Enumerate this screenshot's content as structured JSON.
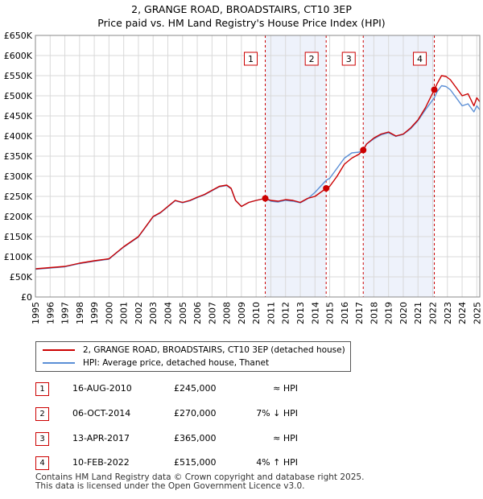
{
  "title_line1": "2, GRANGE ROAD, BROADSTAIRS, CT10 3EP",
  "title_line2": "Price paid vs. HM Land Registry's House Price Index (HPI)",
  "colors": {
    "property": "#cc0000",
    "hpi": "#5b8fd6",
    "shade": "#eef2fb",
    "vline": "#cc0000"
  },
  "chart_data": {
    "type": "line",
    "title": "Price paid vs. HM Land Registry's House Price Index (HPI)",
    "xlim": [
      1995,
      2025.2
    ],
    "ylim": [
      0,
      650000
    ],
    "y_ticks": [
      {
        "value": 0,
        "label": "£0"
      },
      {
        "value": 50000,
        "label": "£50K"
      },
      {
        "value": 100000,
        "label": "£100K"
      },
      {
        "value": 150000,
        "label": "£150K"
      },
      {
        "value": 200000,
        "label": "£200K"
      },
      {
        "value": 250000,
        "label": "£250K"
      },
      {
        "value": 300000,
        "label": "£300K"
      },
      {
        "value": 350000,
        "label": "£350K"
      },
      {
        "value": 400000,
        "label": "£400K"
      },
      {
        "value": 450000,
        "label": "£450K"
      },
      {
        "value": 500000,
        "label": "£500K"
      },
      {
        "value": 550000,
        "label": "£550K"
      },
      {
        "value": 600000,
        "label": "£600K"
      },
      {
        "value": 650000,
        "label": "£650K"
      }
    ],
    "x_ticks": [
      "1995",
      "1996",
      "1997",
      "1998",
      "1999",
      "2000",
      "2001",
      "2002",
      "2003",
      "2004",
      "2005",
      "2006",
      "2007",
      "2008",
      "2009",
      "2010",
      "2011",
      "2012",
      "2013",
      "2014",
      "2015",
      "2016",
      "2017",
      "2018",
      "2019",
      "2020",
      "2021",
      "2022",
      "2023",
      "2024",
      "2025"
    ],
    "grid": true,
    "shaded_ranges": [
      [
        2010.62,
        2014.76
      ],
      [
        2017.28,
        2022.11
      ]
    ],
    "series": [
      {
        "name": "2, GRANGE ROAD, BROADSTAIRS, CT10 3EP (detached house)",
        "color": "#cc0000",
        "x": [
          1995,
          1996,
          1997,
          1998,
          1999,
          2000,
          2000.5,
          2001,
          2002,
          2002.5,
          2003,
          2003.5,
          2004,
          2004.5,
          2005,
          2005.5,
          2006,
          2006.5,
          2007,
          2007.5,
          2008,
          2008.3,
          2008.6,
          2009,
          2009.5,
          2010,
          2010.62,
          2011,
          2011.5,
          2012,
          2012.5,
          2013,
          2013.5,
          2014,
          2014.76,
          2015,
          2015.5,
          2016,
          2016.5,
          2017,
          2017.28,
          2017.5,
          2018,
          2018.5,
          2019,
          2019.5,
          2020,
          2020.5,
          2021,
          2021.5,
          2022.11,
          2022.3,
          2022.6,
          2022.9,
          2023.2,
          2023.6,
          2024,
          2024.4,
          2024.8,
          2025,
          2025.2
        ],
        "y": [
          70000,
          73000,
          76000,
          84000,
          90000,
          95000,
          110000,
          125000,
          150000,
          175000,
          200000,
          210000,
          225000,
          240000,
          235000,
          240000,
          248000,
          255000,
          265000,
          275000,
          278000,
          270000,
          240000,
          225000,
          235000,
          240000,
          245000,
          240000,
          238000,
          242000,
          240000,
          235000,
          245000,
          250000,
          270000,
          275000,
          300000,
          330000,
          345000,
          355000,
          365000,
          380000,
          395000,
          405000,
          410000,
          400000,
          405000,
          420000,
          440000,
          470000,
          515000,
          530000,
          550000,
          548000,
          540000,
          520000,
          500000,
          505000,
          475000,
          495000,
          485000
        ]
      },
      {
        "name": "HPI: Average price, detached house, Thanet",
        "color": "#5b8fd6",
        "x": [
          1995,
          1996,
          1997,
          1998,
          1999,
          2000,
          2000.5,
          2001,
          2002,
          2002.5,
          2003,
          2003.5,
          2004,
          2004.5,
          2005,
          2005.5,
          2006,
          2006.5,
          2007,
          2007.5,
          2008,
          2008.3,
          2008.6,
          2009,
          2009.5,
          2010,
          2010.62,
          2011,
          2011.5,
          2012,
          2012.5,
          2013,
          2013.5,
          2014,
          2014.76,
          2015,
          2015.5,
          2016,
          2016.5,
          2017,
          2017.28,
          2017.5,
          2018,
          2018.5,
          2019,
          2019.5,
          2020,
          2020.5,
          2021,
          2021.5,
          2022.11,
          2022.3,
          2022.6,
          2022.9,
          2023.2,
          2023.6,
          2024,
          2024.4,
          2024.8,
          2025,
          2025.2
        ],
        "y": [
          69000,
          72000,
          75000,
          83000,
          89000,
          94000,
          109000,
          124000,
          149000,
          174000,
          199000,
          209000,
          224000,
          239000,
          234000,
          239000,
          247000,
          254000,
          264000,
          274000,
          277000,
          269000,
          240000,
          225000,
          235000,
          240000,
          245000,
          238000,
          236000,
          240000,
          238000,
          234000,
          244000,
          260000,
          290000,
          295000,
          320000,
          345000,
          358000,
          360000,
          365000,
          380000,
          393000,
          403000,
          408000,
          399000,
          404000,
          418000,
          438000,
          465000,
          495000,
          510000,
          525000,
          523000,
          515000,
          495000,
          475000,
          480000,
          460000,
          475000,
          465000
        ]
      }
    ],
    "sales_points": [
      {
        "x": 2010.62,
        "y": 245000
      },
      {
        "x": 2014.76,
        "y": 270000
      },
      {
        "x": 2017.28,
        "y": 365000
      },
      {
        "x": 2022.11,
        "y": 515000
      }
    ],
    "markers": [
      {
        "label": "1",
        "x": 2010.62
      },
      {
        "label": "2",
        "x": 2014.76
      },
      {
        "label": "3",
        "x": 2017.28
      },
      {
        "label": "4",
        "x": 2022.11
      }
    ]
  },
  "legend": {
    "property_label": "2, GRANGE ROAD, BROADSTAIRS, CT10 3EP (detached house)",
    "hpi_label": "HPI: Average price, detached house, Thanet"
  },
  "sales": [
    {
      "num": "1",
      "date": "16-AUG-2010",
      "price": "£245,000",
      "hpi": "≈ HPI"
    },
    {
      "num": "2",
      "date": "06-OCT-2014",
      "price": "£270,000",
      "hpi": "7% ↓ HPI"
    },
    {
      "num": "3",
      "date": "13-APR-2017",
      "price": "£365,000",
      "hpi": "≈ HPI"
    },
    {
      "num": "4",
      "date": "10-FEB-2022",
      "price": "£515,000",
      "hpi": "4% ↑ HPI"
    }
  ],
  "footer_line1": "Contains HM Land Registry data © Crown copyright and database right 2025.",
  "footer_line2": "This data is licensed under the Open Government Licence v3.0."
}
